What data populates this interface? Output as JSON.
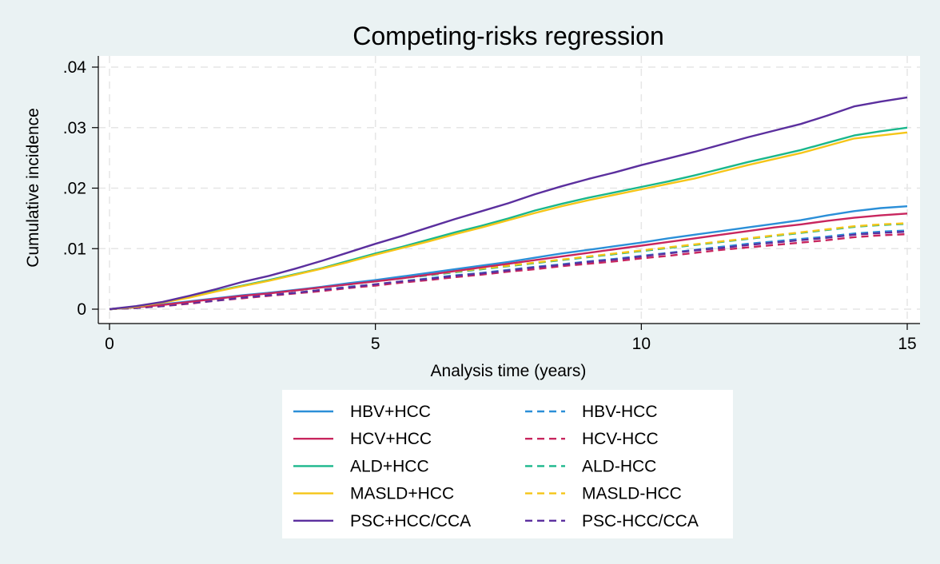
{
  "chart_data": {
    "type": "line",
    "title": "Competing-risks regression",
    "xlabel": "Analysis time (years)",
    "ylabel": "Cumulative incidence",
    "xlim": [
      0,
      15
    ],
    "ylim": [
      0,
      0.04
    ],
    "xticks": [
      0,
      5,
      10,
      15
    ],
    "xtick_labels": [
      "0",
      "5",
      "10",
      "15"
    ],
    "yticks": [
      0,
      0.01,
      0.02,
      0.03,
      0.04
    ],
    "ytick_labels": [
      "0",
      ".01",
      ".02",
      ".03",
      ".04"
    ],
    "grid": true,
    "legend_position": "bottom",
    "x": [
      0,
      0.5,
      1,
      1.5,
      2,
      2.5,
      3,
      3.5,
      4,
      4.5,
      5,
      5.5,
      6,
      6.5,
      7,
      7.5,
      8,
      8.5,
      9,
      9.5,
      10,
      10.5,
      11,
      11.5,
      12,
      12.5,
      13,
      13.5,
      14,
      14.5,
      15
    ],
    "series": [
      {
        "name": "HBV+HCC",
        "color": "#2b8fd8",
        "dash": false,
        "values": [
          0,
          0.0003,
          0.0008,
          0.0013,
          0.0018,
          0.0023,
          0.0027,
          0.0032,
          0.0037,
          0.0043,
          0.0048,
          0.0054,
          0.006,
          0.0066,
          0.0072,
          0.0078,
          0.0085,
          0.0092,
          0.0098,
          0.0104,
          0.011,
          0.0117,
          0.0123,
          0.0129,
          0.0135,
          0.0141,
          0.0147,
          0.0155,
          0.0162,
          0.0167,
          0.017
        ]
      },
      {
        "name": "HCV+HCC",
        "color": "#c8265e",
        "dash": false,
        "values": [
          0,
          0.0003,
          0.0007,
          0.0012,
          0.0017,
          0.0022,
          0.0026,
          0.0031,
          0.0036,
          0.0041,
          0.0046,
          0.0051,
          0.0057,
          0.0063,
          0.0069,
          0.0075,
          0.0081,
          0.0087,
          0.0093,
          0.0099,
          0.0105,
          0.0111,
          0.0117,
          0.0123,
          0.0129,
          0.0135,
          0.014,
          0.0146,
          0.0151,
          0.0155,
          0.0158
        ]
      },
      {
        "name": "ALD+HCC",
        "color": "#1ab78c",
        "dash": false,
        "values": [
          0,
          0.0004,
          0.0011,
          0.002,
          0.003,
          0.0039,
          0.0048,
          0.0058,
          0.0068,
          0.008,
          0.0092,
          0.0103,
          0.0115,
          0.0127,
          0.0138,
          0.015,
          0.0163,
          0.0174,
          0.0184,
          0.0193,
          0.0202,
          0.0211,
          0.0221,
          0.0232,
          0.0243,
          0.0253,
          0.0263,
          0.0275,
          0.0287,
          0.0294,
          0.03
        ]
      },
      {
        "name": "MASLD+HCC",
        "color": "#f5c518",
        "dash": false,
        "values": [
          0,
          0.0004,
          0.0011,
          0.0019,
          0.0029,
          0.0038,
          0.0047,
          0.0057,
          0.0067,
          0.0078,
          0.009,
          0.0101,
          0.0112,
          0.0124,
          0.0135,
          0.0147,
          0.0159,
          0.017,
          0.018,
          0.0189,
          0.0198,
          0.0207,
          0.0216,
          0.0227,
          0.0238,
          0.0248,
          0.0258,
          0.027,
          0.0282,
          0.0287,
          0.0292
        ]
      },
      {
        "name": "PSC+HCC/CCA",
        "color": "#5b2f9e",
        "dash": false,
        "values": [
          0,
          0.0005,
          0.0012,
          0.0022,
          0.0033,
          0.0045,
          0.0055,
          0.0067,
          0.008,
          0.0094,
          0.0108,
          0.0121,
          0.0135,
          0.0149,
          0.0162,
          0.0175,
          0.019,
          0.0203,
          0.0215,
          0.0226,
          0.0238,
          0.0249,
          0.026,
          0.0272,
          0.0284,
          0.0295,
          0.0306,
          0.032,
          0.0335,
          0.0343,
          0.035
        ]
      },
      {
        "name": "HBV-HCC",
        "color": "#2b8fd8",
        "dash": true,
        "values": [
          0,
          0.0002,
          0.0006,
          0.001,
          0.0015,
          0.0019,
          0.0023,
          0.0027,
          0.0032,
          0.0037,
          0.0041,
          0.0046,
          0.0051,
          0.0056,
          0.006,
          0.0065,
          0.007,
          0.0074,
          0.0079,
          0.0083,
          0.0088,
          0.0093,
          0.0098,
          0.0103,
          0.0108,
          0.0112,
          0.0116,
          0.012,
          0.0125,
          0.0128,
          0.013
        ]
      },
      {
        "name": "HCV-HCC",
        "color": "#c8265e",
        "dash": true,
        "values": [
          0,
          0.0002,
          0.0005,
          0.0009,
          0.0014,
          0.0018,
          0.0022,
          0.0026,
          0.003,
          0.0035,
          0.0039,
          0.0044,
          0.0048,
          0.0053,
          0.0057,
          0.0062,
          0.0066,
          0.0071,
          0.0075,
          0.0079,
          0.0084,
          0.0088,
          0.0093,
          0.0098,
          0.0102,
          0.0106,
          0.011,
          0.0114,
          0.0119,
          0.0122,
          0.0124
        ]
      },
      {
        "name": "ALD-HCC",
        "color": "#1ab78c",
        "dash": true,
        "values": [
          0,
          0.0003,
          0.0007,
          0.0012,
          0.0017,
          0.0022,
          0.0026,
          0.0031,
          0.0036,
          0.0041,
          0.0046,
          0.0051,
          0.0056,
          0.0061,
          0.0066,
          0.0071,
          0.0076,
          0.0081,
          0.0086,
          0.0091,
          0.0096,
          0.0101,
          0.0106,
          0.0111,
          0.0116,
          0.0121,
          0.0126,
          0.0131,
          0.0136,
          0.0139,
          0.0141
        ]
      },
      {
        "name": "MASLD-HCC",
        "color": "#f5c518",
        "dash": true,
        "values": [
          0,
          0.0003,
          0.0007,
          0.0012,
          0.0017,
          0.0022,
          0.0027,
          0.0031,
          0.0036,
          0.0041,
          0.0046,
          0.0051,
          0.0057,
          0.0062,
          0.0067,
          0.0072,
          0.0077,
          0.0082,
          0.0087,
          0.0092,
          0.0097,
          0.0102,
          0.0107,
          0.0112,
          0.0117,
          0.0122,
          0.0127,
          0.0132,
          0.0137,
          0.014,
          0.0142
        ]
      },
      {
        "name": "PSC-HCC/CCA",
        "color": "#5b2f9e",
        "dash": true,
        "values": [
          0,
          0.0002,
          0.0005,
          0.001,
          0.0014,
          0.0019,
          0.0023,
          0.0027,
          0.0032,
          0.0036,
          0.0041,
          0.0046,
          0.005,
          0.0055,
          0.0059,
          0.0064,
          0.0069,
          0.0073,
          0.0078,
          0.0082,
          0.0087,
          0.0092,
          0.0097,
          0.0101,
          0.0106,
          0.011,
          0.0114,
          0.0118,
          0.0123,
          0.0126,
          0.0128
        ]
      }
    ]
  }
}
